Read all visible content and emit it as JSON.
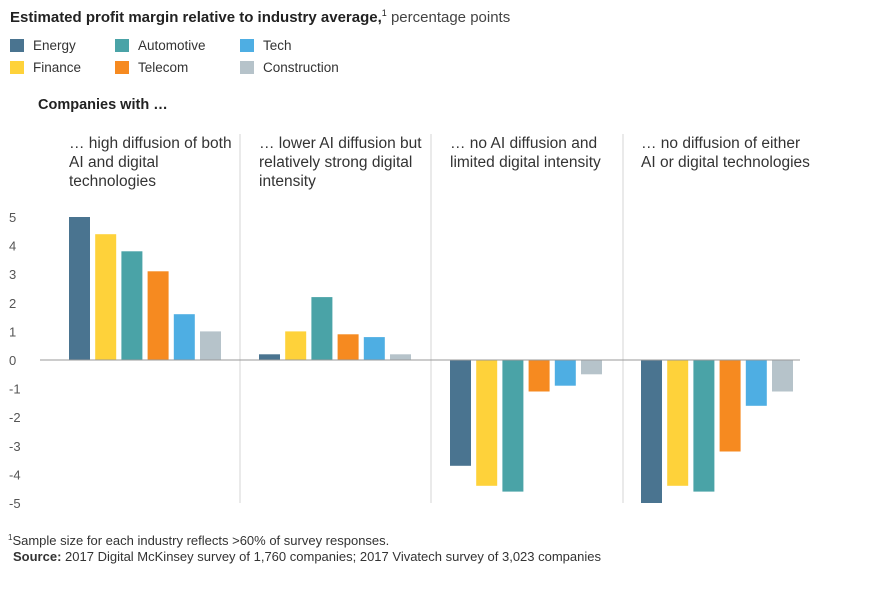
{
  "header": {
    "title_main": "Estimated profit margin relative to industry average,",
    "title_sup": "1",
    "title_unit": "percentage points"
  },
  "legend": [
    {
      "label": "Energy",
      "color": "#4a7490"
    },
    {
      "label": "Automotive",
      "color": "#4aa3a7"
    },
    {
      "label": "Tech",
      "color": "#4eaee3"
    },
    {
      "label": "Finance",
      "color": "#fed23a"
    },
    {
      "label": "Telecom",
      "color": "#f68a20"
    },
    {
      "label": "Construction",
      "color": "#b6c3ca"
    }
  ],
  "companies_label": "Companies with …",
  "groups": [
    {
      "header": "… high diffusion of both AI and digital technologies"
    },
    {
      "header": "… lower AI diffusion but relatively strong digital intensity"
    },
    {
      "header": "… no AI diffusion and limited digital intensity"
    },
    {
      "header": "… no diffusion of either AI or digital technologies"
    }
  ],
  "footnote": {
    "sup": "1",
    "text": "Sample size for each industry reflects >60% of survey responses."
  },
  "source": {
    "label": "Source:",
    "text": "2017 Digital McKinsey survey of 1,760 companies; 2017 Vivatech survey of 3,023 companies"
  },
  "chart_data": {
    "type": "bar",
    "title": "Estimated profit margin relative to industry average, percentage points",
    "categories": [
      "… high diffusion of both AI and digital technologies",
      "… lower AI diffusion but relatively strong digital intensity",
      "… no AI diffusion and limited digital intensity",
      "… no diffusion of either AI or digital technologies"
    ],
    "series": [
      {
        "name": "Energy",
        "color": "#4a7490",
        "values": [
          5,
          0.2,
          -3.7,
          -5
        ]
      },
      {
        "name": "Finance",
        "color": "#fed23a",
        "values": [
          4.4,
          1,
          -4.4,
          -4.4
        ]
      },
      {
        "name": "Automotive",
        "color": "#4aa3a7",
        "values": [
          3.8,
          2.2,
          -4.6,
          -4.6
        ]
      },
      {
        "name": "Telecom",
        "color": "#f68a20",
        "values": [
          3.1,
          0.9,
          -1.1,
          -3.2
        ]
      },
      {
        "name": "Tech",
        "color": "#4eaee3",
        "values": [
          1.6,
          0.8,
          -0.9,
          -1.6
        ]
      },
      {
        "name": "Construction",
        "color": "#b6c3ca",
        "values": [
          1,
          0.2,
          -0.5,
          -1.1
        ]
      }
    ],
    "yticks": [
      5,
      4,
      3,
      2,
      1,
      0,
      -1,
      -2,
      -3,
      -4,
      -5
    ],
    "ylim": [
      -5,
      5
    ],
    "grid": false,
    "legend_position": "top-left"
  }
}
